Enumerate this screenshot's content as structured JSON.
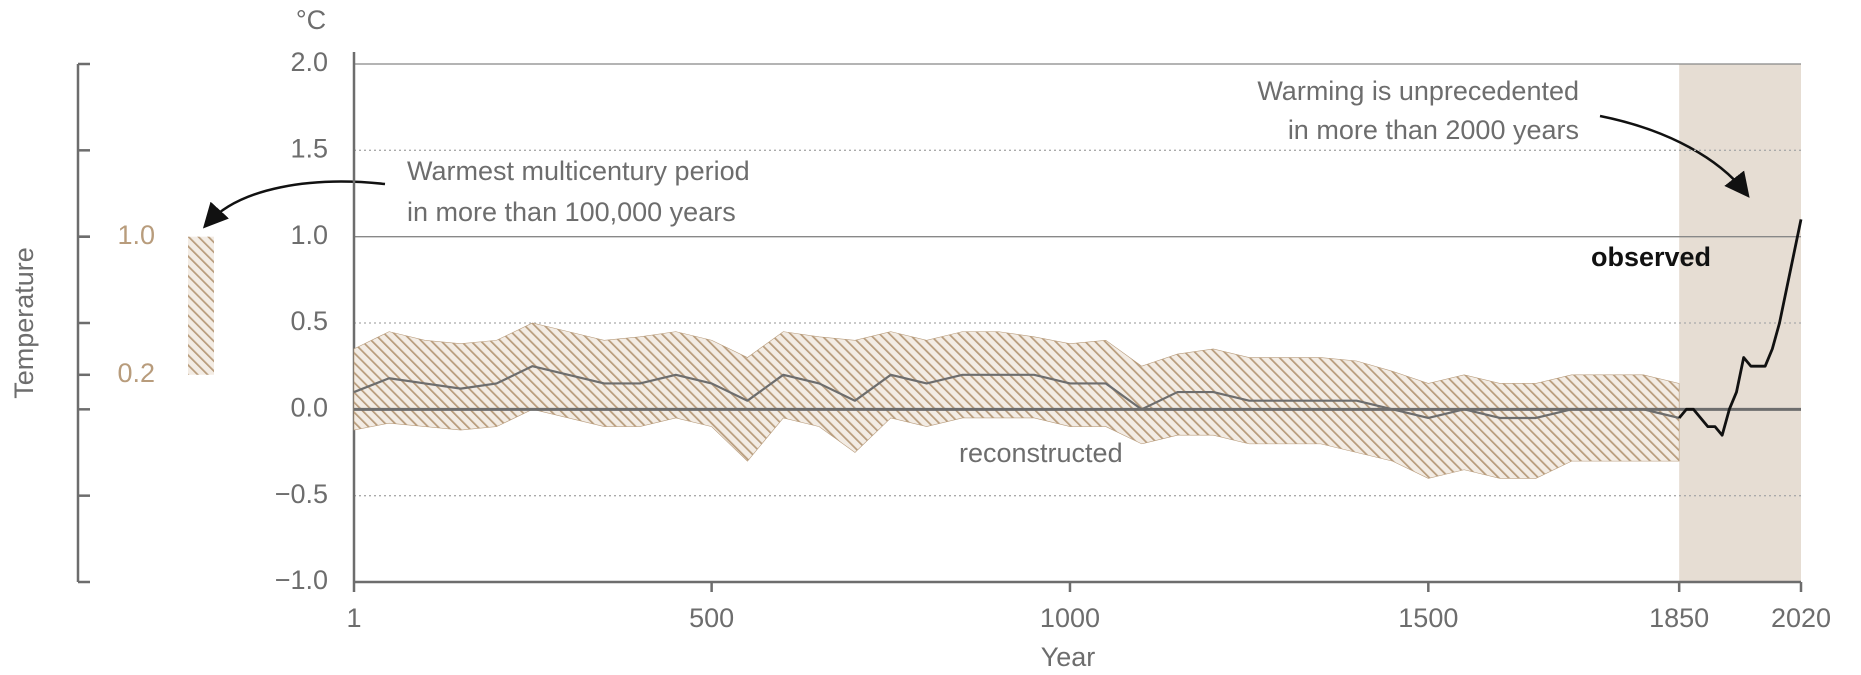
{
  "chart_data": [
    {
      "type": "range",
      "ylabel": "Temperature",
      "range": [
        0.2,
        1.0
      ],
      "range_labels": [
        {
          "value": 1.0,
          "label": "1.0"
        },
        {
          "value": 0.2,
          "label": "0.2"
        }
      ],
      "color": "#b89c7c",
      "annotation": [
        "Warmest multicentury period",
        "in more than 100,000 years"
      ]
    },
    {
      "type": "line",
      "y_unit": "°C",
      "xlabel": "Year",
      "xlim": [
        1,
        2020
      ],
      "xticks": [
        1,
        500,
        1000,
        1500,
        1850,
        2020
      ],
      "ylim": [
        -1,
        2
      ],
      "yticks": [
        {
          "value": -1,
          "label": "−1.0"
        },
        {
          "value": -0.5,
          "label": "−0.5"
        },
        {
          "value": 0,
          "label": "0.0"
        },
        {
          "value": 0.5,
          "label": "0.5"
        },
        {
          "value": 1,
          "label": "1.0"
        },
        {
          "value": 1.5,
          "label": "1.5"
        },
        {
          "value": 2,
          "label": "2.0"
        }
      ],
      "grid": true,
      "shade_x": [
        1850,
        2020
      ],
      "shade_color": "#e6ddd3",
      "annotation": [
        "Warming is unprecedented",
        "in more than 2000 years"
      ],
      "series": [
        {
          "name": "reconstructed",
          "color": "#6d6d6d",
          "band_color": "#b89c7c",
          "x": [
            1,
            50,
            100,
            150,
            200,
            250,
            300,
            350,
            400,
            450,
            500,
            550,
            600,
            650,
            700,
            750,
            800,
            850,
            900,
            950,
            1000,
            1050,
            1100,
            1150,
            1200,
            1250,
            1300,
            1350,
            1400,
            1450,
            1500,
            1550,
            1600,
            1650,
            1700,
            1750,
            1800,
            1850
          ],
          "values": [
            0.1,
            0.18,
            0.15,
            0.12,
            0.15,
            0.25,
            0.2,
            0.15,
            0.15,
            0.2,
            0.15,
            0.05,
            0.2,
            0.15,
            0.05,
            0.2,
            0.15,
            0.2,
            0.2,
            0.2,
            0.15,
            0.15,
            0.0,
            0.1,
            0.1,
            0.05,
            0.05,
            0.05,
            0.05,
            0.0,
            -0.05,
            0.0,
            -0.05,
            -0.05,
            0.0,
            0.0,
            0.0,
            -0.05
          ],
          "upper": [
            0.35,
            0.45,
            0.4,
            0.38,
            0.4,
            0.5,
            0.45,
            0.4,
            0.42,
            0.45,
            0.4,
            0.3,
            0.45,
            0.42,
            0.4,
            0.45,
            0.4,
            0.45,
            0.45,
            0.42,
            0.38,
            0.4,
            0.25,
            0.32,
            0.35,
            0.3,
            0.3,
            0.3,
            0.28,
            0.22,
            0.15,
            0.2,
            0.15,
            0.15,
            0.2,
            0.2,
            0.2,
            0.15
          ],
          "lower": [
            -0.12,
            -0.08,
            -0.1,
            -0.12,
            -0.1,
            0.0,
            -0.05,
            -0.1,
            -0.1,
            -0.05,
            -0.1,
            -0.3,
            -0.05,
            -0.1,
            -0.25,
            -0.05,
            -0.1,
            -0.05,
            -0.05,
            -0.05,
            -0.1,
            -0.1,
            -0.2,
            -0.15,
            -0.15,
            -0.2,
            -0.2,
            -0.2,
            -0.25,
            -0.3,
            -0.4,
            -0.35,
            -0.4,
            -0.4,
            -0.3,
            -0.3,
            -0.3,
            -0.3
          ]
        },
        {
          "name": "observed",
          "color": "#111111",
          "x": [
            1850,
            1860,
            1870,
            1880,
            1890,
            1900,
            1910,
            1920,
            1930,
            1940,
            1950,
            1960,
            1970,
            1980,
            1990,
            2000,
            2010,
            2020
          ],
          "values": [
            -0.05,
            0.0,
            0.0,
            -0.05,
            -0.1,
            -0.1,
            -0.15,
            0.0,
            0.1,
            0.3,
            0.25,
            0.25,
            0.25,
            0.35,
            0.5,
            0.7,
            0.9,
            1.1
          ]
        }
      ]
    }
  ]
}
